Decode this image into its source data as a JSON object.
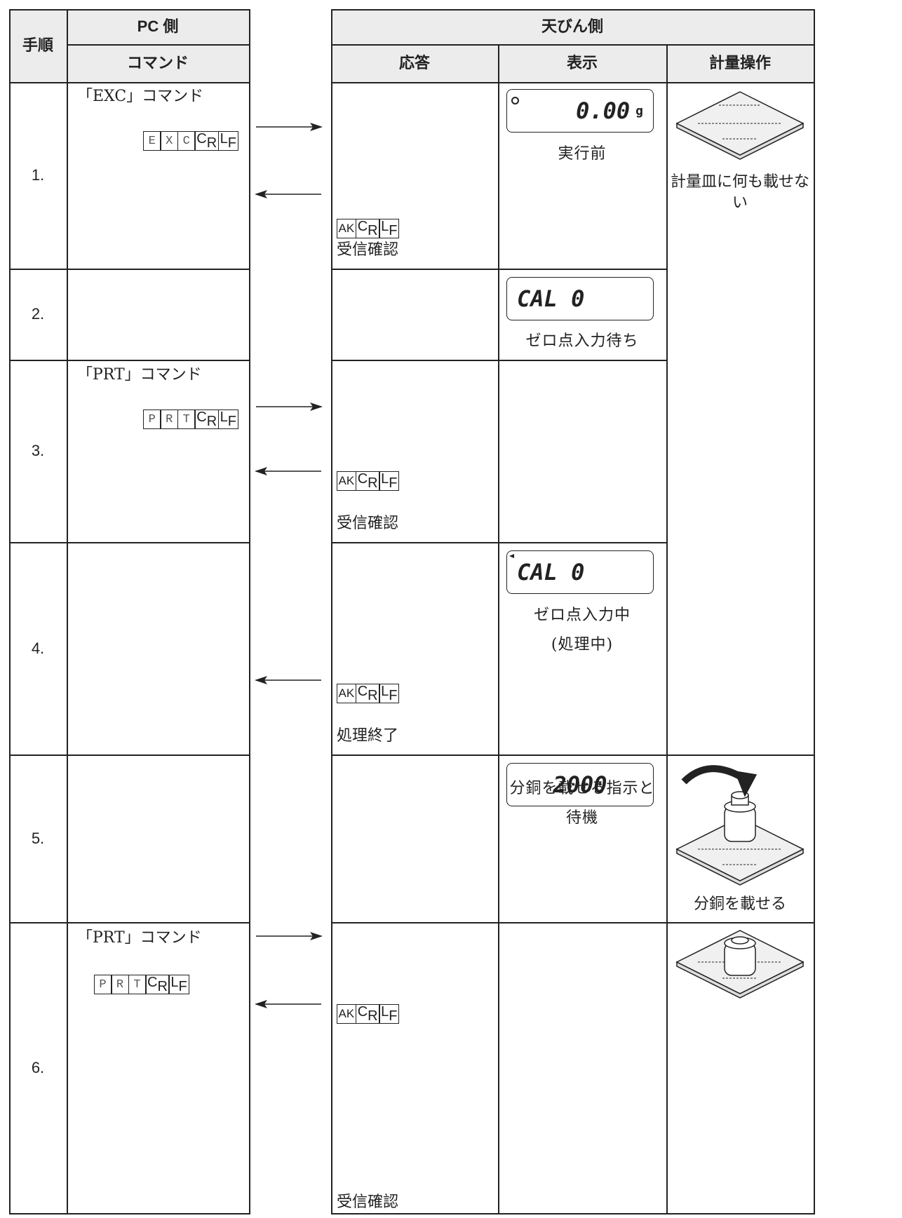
{
  "header": {
    "step": "手順",
    "pc_side": "PC 側",
    "command": "コマンド",
    "balance_side": "天びん側",
    "response": "応答",
    "display": "表示",
    "operation": "計量操作"
  },
  "rows": [
    {
      "step": "1.",
      "command_label": "「EXC」コマンド",
      "command_keys": [
        "E",
        "X",
        "C",
        "CR",
        "LF"
      ],
      "response_keys": [
        "AK",
        "CR",
        "LF"
      ],
      "response_label": "受信確認",
      "display": [
        "0.00",
        "g"
      ],
      "display_caption": [
        "実行前"
      ],
      "operation": "計量皿に何も載せない"
    },
    {
      "step": "2.",
      "display": [
        "CAL 0"
      ],
      "display_caption": [
        "ゼロ点入力待ち"
      ]
    },
    {
      "step": "3.",
      "command_label": "「PRT」コマンド",
      "command_keys": [
        "P",
        "R",
        "T",
        "CR",
        "LF"
      ],
      "response_keys": [
        "AK",
        "CR",
        "LF"
      ],
      "response_label": "受信確認"
    },
    {
      "step": "4.",
      "response_keys": [
        "AK",
        "CR",
        "LF"
      ],
      "response_label": "処理終了",
      "display": [
        "CAL 0"
      ],
      "display_caption": [
        "ゼロ点入力中",
        "(処理中)"
      ]
    },
    {
      "step": "5.",
      "display": [
        "2000"
      ],
      "display_caption": [
        "分銅を載せる指示と",
        "待機"
      ],
      "operation": "分銅を載せる"
    },
    {
      "step": "6.",
      "command_label": "「PRT」コマンド",
      "command_keys": [
        "P",
        "R",
        "T",
        "CR",
        "LF"
      ],
      "response_keys": [
        "AK",
        "CR",
        "LF"
      ],
      "response_label": "受信確認"
    }
  ]
}
